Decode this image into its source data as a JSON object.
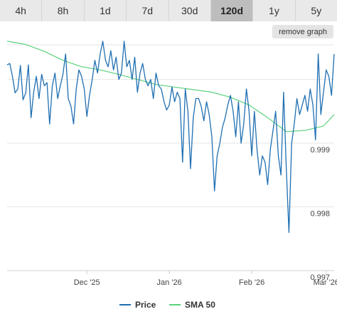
{
  "tabs": [
    "4h",
    "8h",
    "1d",
    "7d",
    "30d",
    "120d",
    "1y",
    "5y"
  ],
  "active_tab": "120d",
  "remove_graph_label": "remove graph",
  "colors": {
    "price": "#1f6fb2",
    "sma": "#5cd27d",
    "grid": "#e6e6e6"
  },
  "chart_data": {
    "type": "line",
    "ylim": [
      0.997,
      1.0008
    ],
    "y_ticks": [
      0.997,
      0.998,
      0.999
    ],
    "y_tick_labels": [
      "0.997",
      "0.998",
      "0.999"
    ],
    "x_range": [
      "2025-11-01",
      "2026-03-04"
    ],
    "x_ticks": [
      "2025-12-01",
      "2026-01-01",
      "2026-02-01",
      "2026-03-01"
    ],
    "x_tick_labels": [
      "Dec '25",
      "Jan '26",
      "Feb '26",
      "Mar '26"
    ],
    "legend": [
      "Price",
      "SMA 50"
    ],
    "series": [
      {
        "name": "Price",
        "x": [
          "2025-11-01",
          "2025-11-02",
          "2025-11-03",
          "2025-11-04",
          "2025-11-05",
          "2025-11-06",
          "2025-11-07",
          "2025-11-08",
          "2025-11-09",
          "2025-11-10",
          "2025-11-11",
          "2025-11-12",
          "2025-11-13",
          "2025-11-14",
          "2025-11-15",
          "2025-11-16",
          "2025-11-17",
          "2025-11-18",
          "2025-11-19",
          "2025-11-20",
          "2025-11-21",
          "2025-11-22",
          "2025-11-23",
          "2025-11-24",
          "2025-11-25",
          "2025-11-26",
          "2025-11-27",
          "2025-11-28",
          "2025-11-29",
          "2025-11-30",
          "2025-12-01",
          "2025-12-02",
          "2025-12-03",
          "2025-12-04",
          "2025-12-05",
          "2025-12-06",
          "2025-12-07",
          "2025-12-08",
          "2025-12-09",
          "2025-12-10",
          "2025-12-11",
          "2025-12-12",
          "2025-12-13",
          "2025-12-14",
          "2025-12-15",
          "2025-12-16",
          "2025-12-17",
          "2025-12-18",
          "2025-12-19",
          "2025-12-20",
          "2025-12-21",
          "2025-12-22",
          "2025-12-23",
          "2025-12-24",
          "2025-12-25",
          "2025-12-26",
          "2025-12-27",
          "2025-12-28",
          "2025-12-29",
          "2025-12-30",
          "2025-12-31",
          "2026-01-01",
          "2026-01-02",
          "2026-01-03",
          "2026-01-04",
          "2026-01-05",
          "2026-01-06",
          "2026-01-07",
          "2026-01-08",
          "2026-01-09",
          "2026-01-10",
          "2026-01-11",
          "2026-01-12",
          "2026-01-13",
          "2026-01-14",
          "2026-01-15",
          "2026-01-16",
          "2026-01-17",
          "2026-01-18",
          "2026-01-19",
          "2026-01-20",
          "2026-01-21",
          "2026-01-22",
          "2026-01-23",
          "2026-01-24",
          "2026-01-25",
          "2026-01-26",
          "2026-01-27",
          "2026-01-28",
          "2026-01-29",
          "2026-01-30",
          "2026-01-31",
          "2026-02-01",
          "2026-02-02",
          "2026-02-03",
          "2026-02-04",
          "2026-02-05",
          "2026-02-06",
          "2026-02-07",
          "2026-02-08",
          "2026-02-09",
          "2026-02-10",
          "2026-02-11",
          "2026-02-12",
          "2026-02-13",
          "2026-02-14",
          "2026-02-15",
          "2026-02-16",
          "2026-02-17",
          "2026-02-18",
          "2026-02-19",
          "2026-02-20",
          "2026-02-21",
          "2026-02-22",
          "2026-02-23",
          "2026-02-24",
          "2026-02-25",
          "2026-02-26",
          "2026-02-27",
          "2026-02-28",
          "2026-03-01",
          "2026-03-02",
          "2026-03-03",
          "2026-03-04"
        ],
        "y": [
          1.00023,
          1.00025,
          1.00005,
          0.99979,
          0.99985,
          1.00022,
          0.99968,
          0.99979,
          1.00023,
          0.9994,
          0.9998,
          1.00005,
          0.9997,
          1.00008,
          0.9999,
          0.99995,
          0.9993,
          0.9999,
          1.0001,
          0.9997,
          0.9999,
          1.00008,
          1.0004,
          0.9997,
          0.99958,
          0.9993,
          0.99985,
          1.00015,
          1.00005,
          0.99985,
          0.99942,
          0.99975,
          1.0,
          1.0003,
          1.0001,
          1.0004,
          1.0006,
          1.0003,
          1.0002,
          1.00045,
          1.00015,
          1.00035,
          1.0,
          1.0001,
          1.0006,
          1.0002,
          1.0003,
          1.0,
          1.00035,
          0.9998,
          1.0001,
          1.00025,
          1.0,
          0.9999,
          1.0,
          0.9997,
          1.0001,
          0.9999,
          0.99985,
          0.99965,
          0.99952,
          0.9996,
          0.99988,
          0.99965,
          0.9998,
          0.9997,
          0.9987,
          0.99985,
          0.9995,
          0.9986,
          0.9994,
          0.9997,
          0.9997,
          0.99958,
          0.99935,
          0.99965,
          0.99945,
          0.9991,
          0.99825,
          0.9988,
          0.999,
          0.99925,
          0.9994,
          0.9996,
          0.99975,
          0.9995,
          0.9991,
          0.99965,
          0.999,
          0.9993,
          0.99985,
          0.9995,
          0.9988,
          0.9995,
          0.9989,
          0.9985,
          0.9988,
          0.9987,
          0.99835,
          0.9989,
          0.9992,
          0.9995,
          0.9988,
          0.9985,
          0.9998,
          0.9986,
          0.9976,
          0.999,
          0.9993,
          0.9997,
          0.99945,
          0.9996,
          0.99975,
          0.9995,
          0.99985,
          0.9996,
          0.99905,
          1.0004,
          0.99945,
          0.9998,
          1.00015,
          1.00005,
          0.99975,
          1.0004
        ]
      },
      {
        "name": "SMA 50",
        "x": [
          "2025-11-01",
          "2025-11-08",
          "2025-11-15",
          "2025-11-22",
          "2025-11-29",
          "2025-12-06",
          "2025-12-13",
          "2025-12-20",
          "2025-12-27",
          "2026-01-03",
          "2026-01-10",
          "2026-01-17",
          "2026-01-24",
          "2026-01-31",
          "2026-02-07",
          "2026-02-14",
          "2026-02-21",
          "2026-02-28",
          "2026-03-04"
        ],
        "y": [
          1.0006,
          1.00055,
          1.00044,
          1.0003,
          1.0002,
          1.00015,
          1.00008,
          1.0,
          0.99992,
          0.99988,
          0.99984,
          0.9998,
          0.99972,
          0.9996,
          0.9994,
          0.99918,
          0.9992,
          0.99927,
          0.99945
        ]
      }
    ]
  }
}
